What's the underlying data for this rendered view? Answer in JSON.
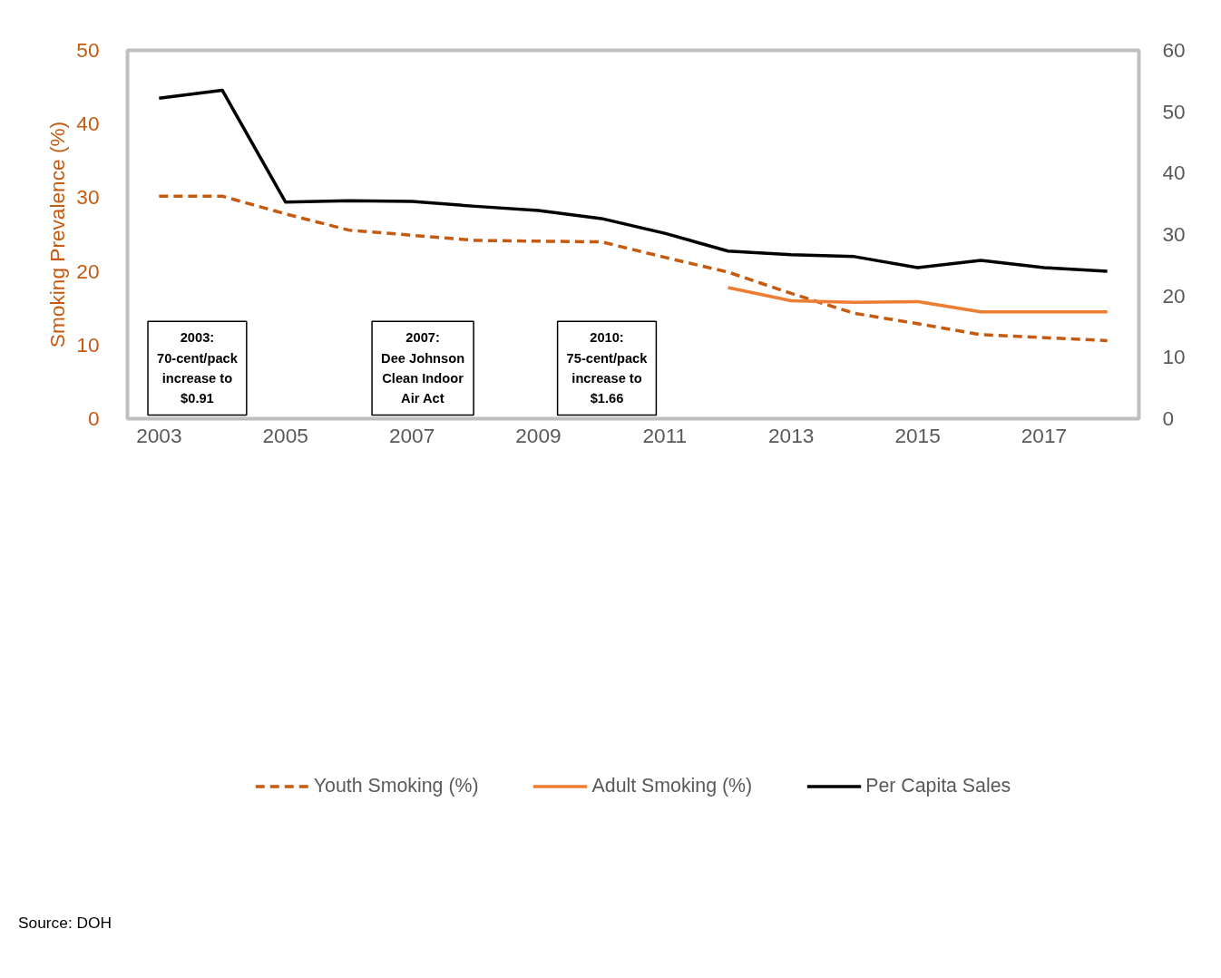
{
  "chart_data": {
    "type": "line",
    "ylabel": "Smoking Prevalence (%)",
    "x": [
      2003,
      2004,
      2005,
      2006,
      2007,
      2008,
      2009,
      2010,
      2011,
      2012,
      2013,
      2014,
      2015,
      2016,
      2017,
      2018
    ],
    "series": [
      {
        "name": "Youth Smoking (%)",
        "color": "#c55a11",
        "line_style": "dashed",
        "values": [
          30.2,
          30.2,
          27.8,
          25.6,
          24.9,
          24.2,
          24.1,
          24.0,
          21.9,
          19.9,
          17.0,
          14.3,
          12.9,
          11.4,
          11.0,
          10.6
        ]
      },
      {
        "name": "Adult Smoking (%)",
        "color": "#ed7d31",
        "line_style": "solid",
        "values": [
          null,
          null,
          null,
          null,
          null,
          null,
          null,
          null,
          null,
          17.8,
          16.0,
          15.8,
          15.9,
          14.5,
          14.5,
          14.5
        ]
      },
      {
        "name": "Per Capita Sales",
        "color": "#000000",
        "line_style": "solid",
        "axis": "y2",
        "values": [
          52.2,
          53.5,
          35.3,
          35.5,
          35.4,
          34.6,
          33.9,
          32.6,
          30.2,
          27.3,
          26.7,
          26.4,
          24.6,
          25.8,
          24.6,
          24.0
        ]
      }
    ],
    "xlim": [
      2002.5,
      2018.5
    ],
    "xticks": [
      2003,
      2005,
      2007,
      2009,
      2011,
      2013,
      2015,
      2017
    ],
    "ylim": [
      0,
      50
    ],
    "yticks": [
      0,
      10,
      20,
      30,
      40,
      50
    ],
    "y2lim": [
      0,
      60
    ],
    "y2ticks": [
      0,
      10,
      20,
      30,
      40,
      50,
      60
    ],
    "grid": false,
    "legend": "bottom",
    "marker": "none",
    "annotations": [
      "2003:\n70-cent/pack\nincrease to\n$0.91",
      "2007:\nDee Johnson\nClean Indoor\nAir Act",
      "2010:\n75-cent/pack\nincrease to\n$1.66",
      "Source: DOH"
    ]
  }
}
